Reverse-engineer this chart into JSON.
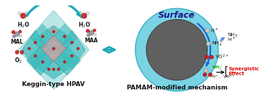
{
  "background_color": "#ffffff",
  "left_label": "Keggin-type HPAV",
  "right_label": "PAMAM-modified mechanism",
  "surface_label": "Surface",
  "arrow_color": "#1fa8b8",
  "outer_circle_color": "#6acfe0",
  "outer_circle_edge": "#3ab0c8",
  "inner_circle_color": "#606060",
  "inner_circle_edge": "#404040",
  "crystal_color": "#3dbdbd",
  "crystal_edge_color": "#2a9090",
  "crystal_alpha": 0.75,
  "pink_fill": "#d4a0a0",
  "pink_edge": "#b07070",
  "node_color": "#cc2222",
  "node_edge": "#880000",
  "h2o_O_color": "#cc3333",
  "h2o_H_color": "#dddddd",
  "mol_C_color": "#888888",
  "mol_O_color": "#cc3333",
  "mol_H_color": "#dddddd",
  "ball_gray": "#c8c8c8",
  "ball_gray_edge": "#888888",
  "ball_red": "#cc2222",
  "ball_red_edge": "#880000",
  "green_text": "#00aa00",
  "red_text": "#dd0000",
  "dark_blue_text": "#1a1a8e",
  "black_text": "#111111",
  "blue_arrow": "#2266cc",
  "synergistic_text": "Synergistic\nEffect"
}
